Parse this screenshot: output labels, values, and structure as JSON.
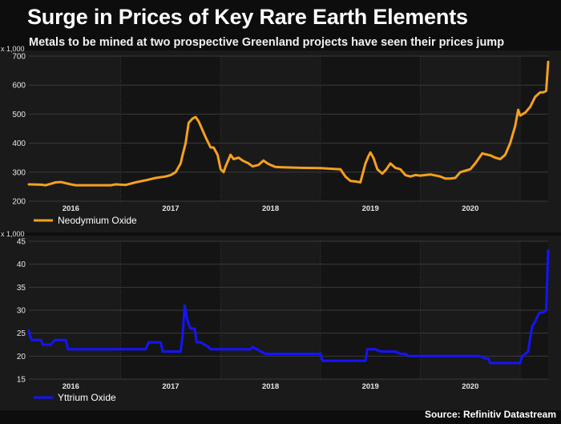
{
  "title": "Surge in Prices of Key Rare Earth Elements",
  "subtitle": "Metals to be mined at two prospective Greenland projects have seen their prices jump",
  "source": "Source: Refinitiv Datastream",
  "colors": {
    "background": "#0d0d0d",
    "panel": "#1a1a1a",
    "neodymium": "#f5a01e",
    "yttrium": "#1414ff"
  },
  "chart_data": [
    {
      "type": "line",
      "unit_label": "x 1,000",
      "series": [
        {
          "name": "Neodymium Oxide",
          "color": "#f5a01e",
          "x": [
            2015.58,
            2015.7,
            2015.75,
            2015.8,
            2015.85,
            2015.9,
            2016.0,
            2016.05,
            2016.2,
            2016.4,
            2016.45,
            2016.55,
            2016.65,
            2016.75,
            2016.85,
            2016.95,
            2017.0,
            2017.05,
            2017.1,
            2017.12,
            2017.15,
            2017.18,
            2017.22,
            2017.25,
            2017.28,
            2017.3,
            2017.35,
            2017.4,
            2017.43,
            2017.47,
            2017.5,
            2017.53,
            2017.55,
            2017.6,
            2017.63,
            2017.68,
            2017.72,
            2017.78,
            2017.82,
            2017.88,
            2017.93,
            2017.97,
            2018.0,
            2018.05,
            2018.1,
            2018.3,
            2018.5,
            2018.6,
            2018.7,
            2018.73,
            2018.75,
            2018.8,
            2018.85,
            2018.9,
            2018.95,
            2018.98,
            2019.0,
            2019.03,
            2019.07,
            2019.12,
            2019.16,
            2019.2,
            2019.25,
            2019.3,
            2019.35,
            2019.4,
            2019.45,
            2019.5,
            2019.55,
            2019.6,
            2019.7,
            2019.75,
            2019.8,
            2019.85,
            2019.9,
            2019.95,
            2020.0,
            2020.05,
            2020.1,
            2020.12,
            2020.15,
            2020.2,
            2020.25,
            2020.3,
            2020.35,
            2020.4,
            2020.45,
            2020.48,
            2020.5,
            2020.55,
            2020.6,
            2020.65,
            2020.7,
            2020.73,
            2020.76,
            2020.78
          ],
          "y": [
            258,
            257,
            255,
            260,
            265,
            266,
            258,
            255,
            255,
            255,
            258,
            256,
            265,
            272,
            280,
            285,
            290,
            300,
            330,
            360,
            400,
            470,
            485,
            490,
            475,
            460,
            420,
            385,
            385,
            360,
            310,
            300,
            320,
            360,
            345,
            350,
            340,
            330,
            320,
            325,
            340,
            330,
            325,
            318,
            317,
            315,
            314,
            312,
            310,
            295,
            285,
            270,
            268,
            265,
            330,
            355,
            368,
            350,
            310,
            295,
            310,
            330,
            315,
            310,
            290,
            285,
            290,
            288,
            290,
            292,
            285,
            278,
            278,
            280,
            300,
            305,
            310,
            330,
            355,
            365,
            362,
            358,
            350,
            345,
            360,
            400,
            460,
            515,
            495,
            505,
            525,
            560,
            575,
            575,
            580,
            680
          ]
        }
      ],
      "x_ticks": [
        "2016",
        "2017",
        "2018",
        "2019",
        "2020"
      ],
      "x_tick_values": [
        2016.0,
        2017.0,
        2018.0,
        2019.0,
        2020.0
      ],
      "y_ticks": [
        "200",
        "300",
        "400",
        "500",
        "600",
        "700"
      ],
      "ylim": [
        200,
        700
      ],
      "xlim": [
        2015.58,
        2020.78
      ],
      "grid": true,
      "legend": "bottom-left"
    },
    {
      "type": "line",
      "unit_label": "x 1,000",
      "series": [
        {
          "name": "Yttrium Oxide",
          "color": "#1414ff",
          "x": [
            2015.58,
            2015.59,
            2015.61,
            2015.7,
            2015.72,
            2015.8,
            2015.84,
            2015.95,
            2015.97,
            2016.3,
            2016.35,
            2016.5,
            2016.75,
            2016.78,
            2016.9,
            2016.92,
            2017.1,
            2017.12,
            2017.14,
            2017.16,
            2017.18,
            2017.2,
            2017.24,
            2017.26,
            2017.3,
            2017.34,
            2017.38,
            2017.4,
            2017.6,
            2017.65,
            2017.8,
            2017.82,
            2017.95,
            2018.25,
            2018.5,
            2018.52,
            2018.7,
            2018.8,
            2018.95,
            2018.97,
            2019.05,
            2019.1,
            2019.25,
            2019.3,
            2019.35,
            2019.38,
            2019.6,
            2019.8,
            2020.0,
            2020.1,
            2020.15,
            2020.18,
            2020.2,
            2020.5,
            2020.52,
            2020.58,
            2020.6,
            2020.62,
            2020.65,
            2020.68,
            2020.7,
            2020.73,
            2020.76,
            2020.78
          ],
          "y": [
            25.5,
            24.5,
            23.5,
            23.5,
            22.5,
            22.5,
            23.5,
            23.5,
            21.5,
            21.5,
            21.5,
            21.5,
            21.5,
            23,
            23,
            21,
            21,
            24.5,
            31,
            28.5,
            27,
            26,
            26,
            23,
            23,
            22.5,
            22,
            21.5,
            21.5,
            21.5,
            21.5,
            22,
            20.5,
            20.5,
            20.5,
            19,
            19,
            19,
            19,
            21.5,
            21.5,
            21,
            21,
            20.5,
            20.5,
            20,
            20,
            20,
            20,
            20,
            19.5,
            19.5,
            18.5,
            18.5,
            20,
            21,
            24,
            26.5,
            27.5,
            29,
            29.5,
            29.5,
            30,
            43
          ]
        }
      ],
      "x_ticks": [
        "2016",
        "2017",
        "2018",
        "2019",
        "2020"
      ],
      "x_tick_values": [
        2016.0,
        2017.0,
        2018.0,
        2019.0,
        2020.0
      ],
      "y_ticks": [
        "15",
        "20",
        "25",
        "30",
        "35",
        "40",
        "45"
      ],
      "ylim": [
        15,
        45
      ],
      "xlim": [
        2015.58,
        2020.78
      ],
      "grid": true,
      "legend": "bottom-left"
    }
  ]
}
